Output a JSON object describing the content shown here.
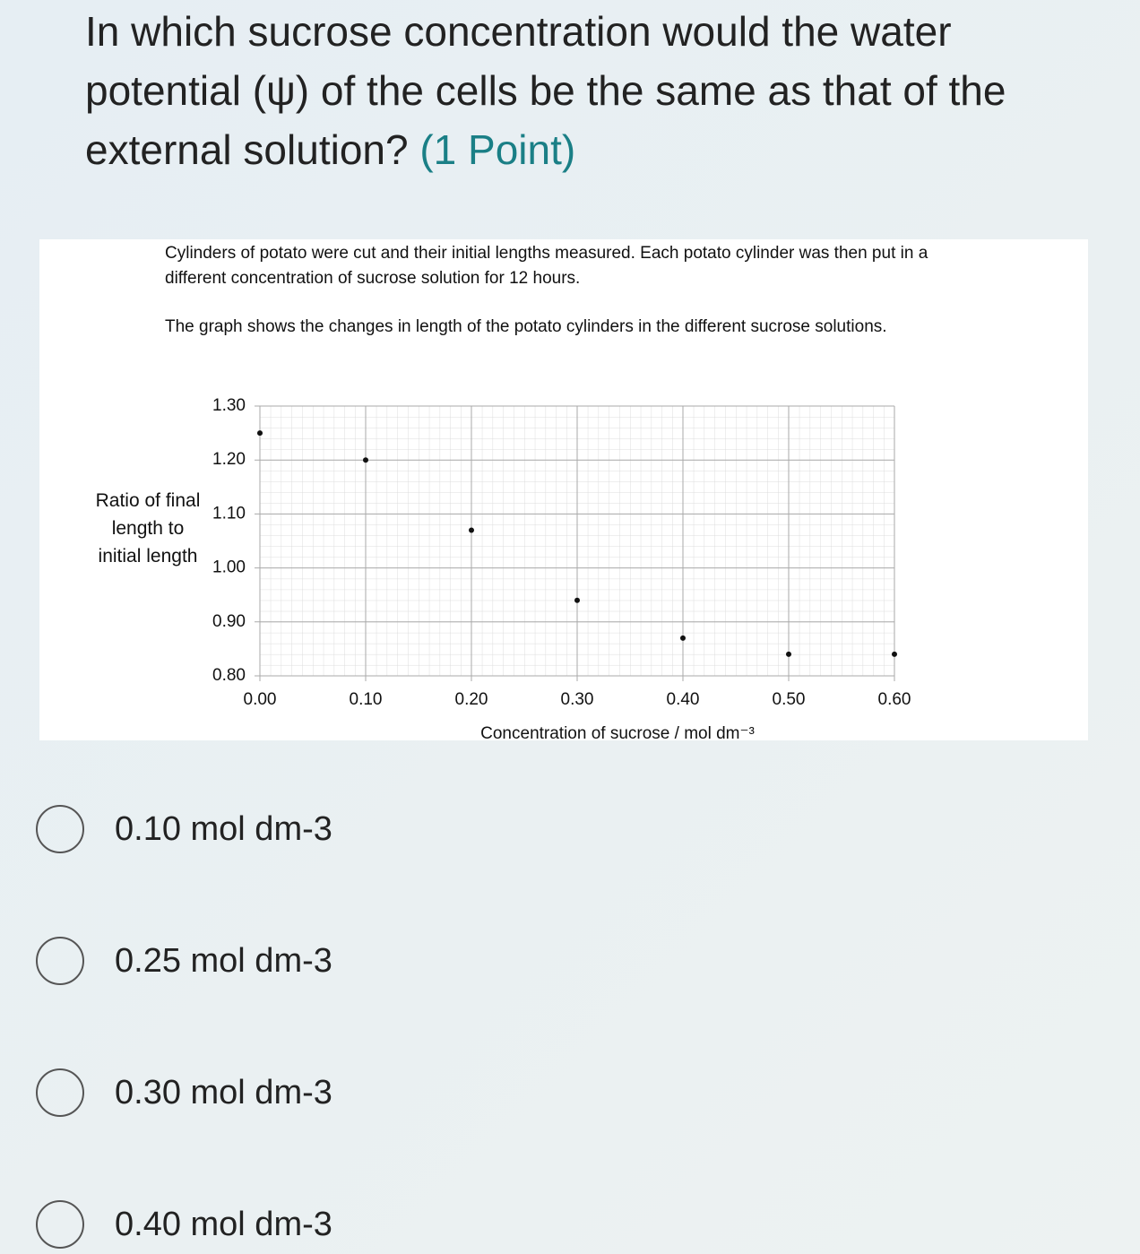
{
  "question": {
    "text": "In which sucrose concentration would the water potential (ψ) of the cells be the same as that of the external solution?",
    "points": "(1 Point)"
  },
  "figure": {
    "paragraphs": [
      "Cylinders of potato were cut and their initial lengths measured. Each potato cylinder was then put in a different concentration of sucrose solution for 12 hours.",
      "The graph shows the changes in length of the potato cylinders in the different sucrose solutions."
    ]
  },
  "chart_data": {
    "type": "scatter",
    "y_label": "Ratio of final length to initial length",
    "x_label": "Concentration of sucrose / mol dm⁻³",
    "x": [
      0,
      0.1,
      0.2,
      0.3,
      0.4,
      0.5,
      0.6
    ],
    "values": [
      1.25,
      1.2,
      1.07,
      0.94,
      0.87,
      0.84,
      0.84
    ],
    "color": "#111111",
    "xlim": [
      0,
      0.6
    ],
    "ylim": [
      0.8,
      1.3
    ],
    "xticks": [
      {
        "value": 0,
        "label": "0.00"
      },
      {
        "value": 0.1,
        "label": "0.10"
      },
      {
        "value": 0.2,
        "label": "0.20"
      },
      {
        "value": 0.3,
        "label": "0.30"
      },
      {
        "value": 0.4,
        "label": "0.40"
      },
      {
        "value": 0.5,
        "label": "0.50"
      },
      {
        "value": 0.6,
        "label": "0.60"
      }
    ],
    "yticks": [
      {
        "value": 0.8,
        "label": "0.80"
      },
      {
        "value": 0.9,
        "label": "0.90"
      },
      {
        "value": 1,
        "label": "1.00"
      },
      {
        "value": 1.1,
        "label": "1.10"
      },
      {
        "value": 1.2,
        "label": "1.20"
      },
      {
        "value": 1.3,
        "label": "1.30"
      }
    ],
    "grid": true
  },
  "options": [
    "0.10 mol dm-3",
    "0.25 mol dm-3",
    "0.30 mol dm-3",
    "0.40 mol dm-3"
  ]
}
